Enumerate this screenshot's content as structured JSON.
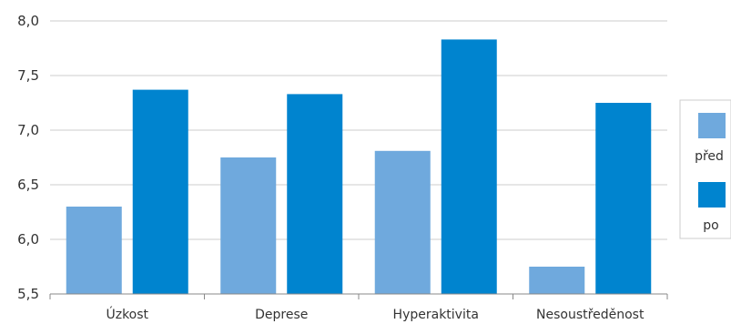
{
  "chart_data": {
    "type": "bar",
    "title": "",
    "xlabel": "",
    "ylabel": "",
    "categories": [
      "Úzkost",
      "Deprese",
      "Hyperaktivita",
      "Nesoustředěnost"
    ],
    "series": [
      {
        "name": "před",
        "values": [
          6.3,
          6.75,
          6.81,
          5.75
        ],
        "color": "#6fa9dd"
      },
      {
        "name": "po",
        "values": [
          7.37,
          7.33,
          7.83,
          7.25
        ],
        "color": "#0084cf"
      }
    ],
    "ylim": [
      5.5,
      8.0
    ],
    "yticks": [
      "5,5",
      "6,0",
      "6,5",
      "7,0",
      "7,5",
      "8,0"
    ],
    "grid": true,
    "legend_position": "right"
  }
}
